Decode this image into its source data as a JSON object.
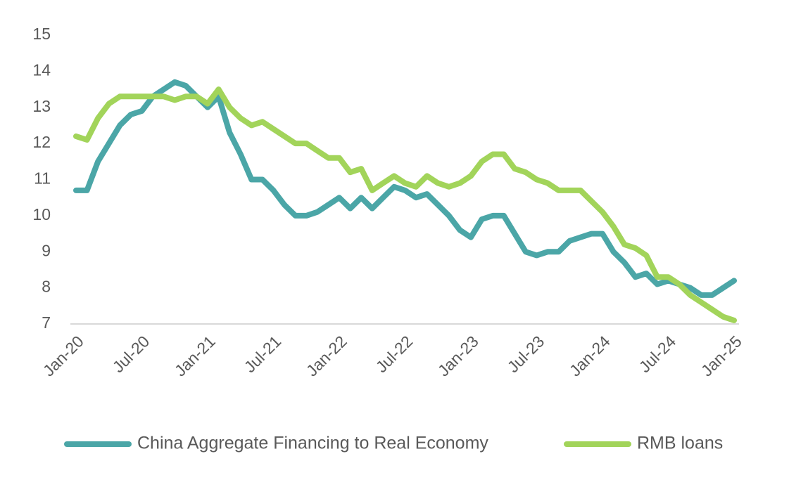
{
  "chart_data": {
    "type": "line",
    "categories": [
      "Jan-20",
      null,
      null,
      null,
      null,
      null,
      "Jul-20",
      null,
      null,
      null,
      null,
      null,
      "Jan-21",
      null,
      null,
      null,
      null,
      null,
      "Jul-21",
      null,
      null,
      null,
      null,
      null,
      "Jan-22",
      null,
      null,
      null,
      null,
      null,
      "Jul-22",
      null,
      null,
      null,
      null,
      null,
      "Jan-23",
      null,
      null,
      null,
      null,
      null,
      "Jul-23",
      null,
      null,
      null,
      null,
      null,
      "Jan-24",
      null,
      null,
      null,
      null,
      null,
      "Jul-24",
      null,
      null,
      null,
      null,
      null,
      "Jan-25"
    ],
    "series": [
      {
        "name": "China Aggregate Financing to Real Economy",
        "color": "#4ba6a7",
        "values": [
          10.7,
          10.7,
          11.5,
          12.0,
          12.5,
          12.8,
          12.9,
          13.3,
          13.5,
          13.7,
          13.6,
          13.3,
          13.0,
          13.3,
          12.3,
          11.7,
          11.0,
          11.0,
          10.7,
          10.3,
          10.0,
          10.0,
          10.1,
          10.3,
          10.5,
          10.2,
          10.5,
          10.2,
          10.5,
          10.8,
          10.7,
          10.5,
          10.6,
          10.3,
          10.0,
          9.6,
          9.4,
          9.9,
          10.0,
          10.0,
          9.5,
          9.0,
          8.9,
          9.0,
          9.0,
          9.3,
          9.4,
          9.5,
          9.5,
          9.0,
          8.7,
          8.3,
          8.4,
          8.1,
          8.2,
          8.1,
          8.0,
          7.8,
          7.8,
          8.0,
          8.2
        ]
      },
      {
        "name": "RMB loans",
        "color": "#a2d45a",
        "values": [
          12.2,
          12.1,
          12.7,
          13.1,
          13.3,
          13.3,
          13.3,
          13.3,
          13.3,
          13.2,
          13.3,
          13.3,
          13.1,
          13.5,
          13.0,
          12.7,
          12.5,
          12.6,
          12.4,
          12.2,
          12.0,
          12.0,
          11.8,
          11.6,
          11.6,
          11.2,
          11.3,
          10.7,
          10.9,
          11.1,
          10.9,
          10.8,
          11.1,
          10.9,
          10.8,
          10.9,
          11.1,
          11.5,
          11.7,
          11.7,
          11.3,
          11.2,
          11.0,
          10.9,
          10.7,
          10.7,
          10.7,
          10.4,
          10.1,
          9.7,
          9.2,
          9.1,
          8.9,
          8.3,
          8.3,
          8.1,
          7.8,
          7.6,
          7.4,
          7.2,
          7.1
        ]
      }
    ],
    "ylim": [
      7,
      15
    ],
    "yticks": [
      7,
      8,
      9,
      10,
      11,
      12,
      13,
      14,
      15
    ],
    "grid": false,
    "legend": "bottom"
  }
}
